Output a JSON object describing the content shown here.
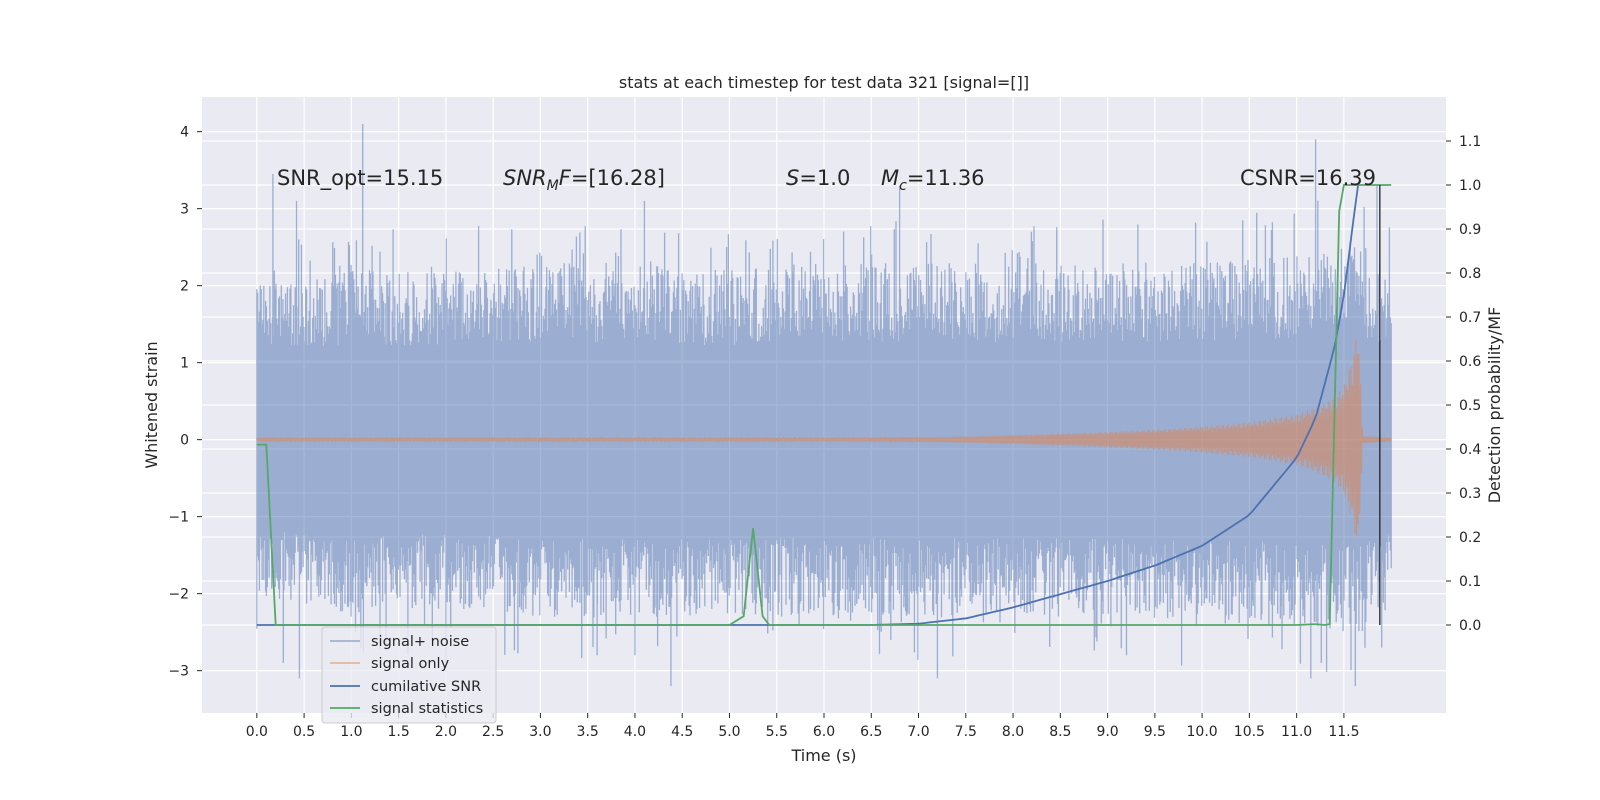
{
  "chart_data": {
    "type": "line",
    "title": "stats at each timestep for test data 321 [signal=[]]",
    "xlabel": "Time (s)",
    "ylabel_left": "Whitened strain",
    "ylabel_right": "Detection probability/MF",
    "xlim": [
      -0.58,
      12.58
    ],
    "ylim_left": [
      -3.55,
      4.45
    ],
    "ylim_right": [
      -0.2,
      1.2
    ],
    "grid": true,
    "x_ticks": [
      "0.0",
      "0.5",
      "1.0",
      "1.5",
      "2.0",
      "2.5",
      "3.0",
      "3.5",
      "4.0",
      "4.5",
      "5.0",
      "5.5",
      "6.0",
      "6.5",
      "7.0",
      "7.5",
      "8.0",
      "8.5",
      "9.0",
      "9.5",
      "10.0",
      "10.5",
      "11.0",
      "11.5"
    ],
    "y_left_ticks": [
      "4",
      "3",
      "2",
      "1",
      "0",
      "−1",
      "−2",
      "−3"
    ],
    "y_right_ticks": [
      "1.1",
      "1.0",
      "0.9",
      "0.8",
      "0.7",
      "0.6",
      "0.5",
      "0.4",
      "0.3",
      "0.2",
      "0.1",
      "0.0"
    ],
    "annotations": {
      "snr_opt": "SNR_opt=15.15",
      "snr_mf_italic": "SNR",
      "snr_mf_sub": "M",
      "snr_mf_italic2": "F",
      "snr_mf_value": "=[16.28]",
      "s_italic": "S",
      "s_value": "=1.0",
      "mc_italic": "M",
      "mc_sub": "c",
      "mc_value": "=11.36",
      "csnr": "CSNR=16.39"
    },
    "legend": {
      "location": "lower-left",
      "entries": [
        "signal+ noise",
        "signal only",
        "cumilative SNR",
        "signal statistics"
      ]
    },
    "series": [
      {
        "name": "signal+ noise",
        "axis": "left",
        "color": "#4c72b0",
        "opacity": 0.5,
        "x_range": [
          0.0,
          12.0
        ],
        "envelope": {
          "x": [
            0.0,
            1.0,
            2.0,
            3.0,
            4.0,
            5.0,
            6.0,
            7.0,
            8.0,
            9.0,
            10.0,
            11.0,
            11.5,
            12.0
          ],
          "upper": [
            2.0,
            2.2,
            2.2,
            2.3,
            2.3,
            2.2,
            2.3,
            2.3,
            2.3,
            2.3,
            2.3,
            2.4,
            2.6,
            2.2
          ],
          "lower": [
            -2.0,
            -2.3,
            -2.2,
            -2.3,
            -2.3,
            -2.3,
            -2.3,
            -2.3,
            -2.3,
            -2.3,
            -2.4,
            -2.4,
            -2.5,
            -2.2
          ]
        },
        "spikes": [
          [
            0.17,
            3.45
          ],
          [
            0.28,
            -2.9
          ],
          [
            0.42,
            3.1
          ],
          [
            0.45,
            -3.1
          ],
          [
            1.12,
            4.1
          ],
          [
            1.1,
            -2.7
          ],
          [
            2.0,
            -2.9
          ],
          [
            3.6,
            -2.8
          ],
          [
            4.0,
            -2.8
          ],
          [
            4.1,
            3.1
          ],
          [
            4.38,
            -3.2
          ],
          [
            6.8,
            3.3
          ],
          [
            7.2,
            -3.1
          ],
          [
            9.2,
            -2.8
          ],
          [
            11.2,
            3.9
          ],
          [
            11.15,
            -3.1
          ],
          [
            11.62,
            -3.2
          ],
          [
            11.85,
            3.3
          ],
          [
            11.9,
            -2.7
          ]
        ]
      },
      {
        "name": "signal only",
        "axis": "left",
        "color": "#dd8452",
        "x": [
          0.0,
          4.0,
          6.0,
          7.0,
          7.5,
          8.0,
          8.5,
          9.0,
          9.5,
          10.0,
          10.5,
          11.0,
          11.2,
          11.4,
          11.5,
          11.6,
          11.65,
          11.7,
          12.0
        ],
        "amplitude": [
          0.02,
          0.02,
          0.02,
          0.03,
          0.04,
          0.06,
          0.08,
          0.1,
          0.13,
          0.17,
          0.23,
          0.33,
          0.42,
          0.55,
          0.7,
          1.1,
          1.5,
          0.05,
          0.02
        ]
      },
      {
        "name": "cumilative SNR",
        "axis": "right",
        "color": "#4c72b0",
        "x": [
          0.0,
          6.5,
          7.0,
          7.5,
          8.0,
          8.5,
          9.0,
          9.5,
          10.0,
          10.5,
          11.0,
          11.2,
          11.4,
          11.5,
          11.6,
          11.65
        ],
        "y": [
          0.0,
          0.0,
          0.003,
          0.015,
          0.04,
          0.07,
          0.1,
          0.135,
          0.18,
          0.25,
          0.38,
          0.47,
          0.63,
          0.75,
          0.92,
          1.0
        ]
      },
      {
        "name": "signal statistics",
        "axis": "right",
        "color": "#55a868",
        "x": [
          0.0,
          0.05,
          0.1,
          0.2,
          5.0,
          5.15,
          5.25,
          5.35,
          5.42,
          5.6,
          11.0,
          11.2,
          11.3,
          11.35,
          11.45,
          11.5,
          12.0
        ],
        "y": [
          0.41,
          0.41,
          0.41,
          0.0,
          0.0,
          0.02,
          0.22,
          0.02,
          0.0,
          0.0,
          0.0,
          0.002,
          0.0,
          0.002,
          0.94,
          1.0,
          1.0
        ]
      }
    ],
    "marker_line": {
      "x": 11.88,
      "color": "#222222"
    }
  }
}
